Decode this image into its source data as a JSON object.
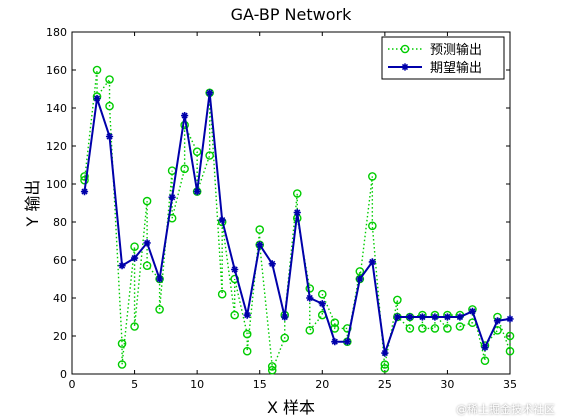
{
  "chart_data": {
    "type": "line",
    "title": "GA-BP Network",
    "xlabel": "X 样本",
    "ylabel": "Y 输出",
    "xlim": [
      0,
      35
    ],
    "ylim": [
      0,
      180
    ],
    "xticks": [
      0,
      5,
      10,
      15,
      20,
      25,
      30,
      35
    ],
    "yticks": [
      0,
      20,
      40,
      60,
      80,
      100,
      120,
      140,
      160,
      180
    ],
    "grid": false,
    "legend_position": "top-right",
    "series": [
      {
        "name": "预测输出",
        "color": "#00cc00",
        "line_style": "dotted",
        "marker": "circle",
        "x": [
          1,
          1,
          2,
          2,
          3,
          3,
          4,
          4,
          5,
          5,
          6,
          6,
          7,
          7,
          8,
          8,
          9,
          9,
          10,
          10,
          11,
          11,
          12,
          12,
          13,
          13,
          14,
          14,
          15,
          15,
          16,
          16,
          17,
          17,
          18,
          18,
          19,
          19,
          20,
          20,
          21,
          21,
          22,
          22,
          23,
          23,
          24,
          24,
          25,
          25,
          26,
          26,
          27,
          27,
          28,
          28,
          29,
          29,
          30,
          30,
          31,
          31,
          32,
          32,
          33,
          33,
          34,
          34,
          35,
          35
        ],
        "y": [
          104,
          102,
          160,
          146,
          155,
          141,
          16,
          5,
          67,
          25,
          91,
          57,
          50,
          34,
          107,
          82,
          108,
          131,
          117,
          96,
          115,
          148,
          42,
          80,
          31,
          50,
          21,
          12,
          76,
          68,
          4,
          2,
          19,
          31,
          95,
          82,
          45,
          23,
          31,
          42,
          27,
          24,
          24,
          17,
          54,
          50,
          104,
          78,
          3,
          5,
          39,
          30,
          24,
          30,
          31,
          24,
          24,
          31,
          24,
          31,
          31,
          25,
          27,
          34,
          7,
          15,
          23,
          30,
          12,
          20
        ]
      },
      {
        "name": "期望输出",
        "color": "#0000aa",
        "line_style": "solid",
        "marker": "star",
        "x": [
          1,
          2,
          3,
          4,
          5,
          6,
          7,
          8,
          9,
          10,
          11,
          12,
          13,
          14,
          15,
          16,
          17,
          18,
          19,
          20,
          21,
          22,
          23,
          24,
          25,
          26,
          27,
          28,
          29,
          30,
          31,
          32,
          33,
          34,
          35
        ],
        "y": [
          96,
          145,
          125,
          57,
          61,
          69,
          50,
          93,
          136,
          96,
          148,
          81,
          55,
          31,
          68,
          58,
          30,
          85,
          40,
          37,
          17,
          17,
          50,
          59,
          11,
          30,
          30,
          30,
          30,
          30,
          30,
          33,
          14,
          28,
          29
        ]
      }
    ]
  },
  "watermark": "@稀土掘金技术社区"
}
